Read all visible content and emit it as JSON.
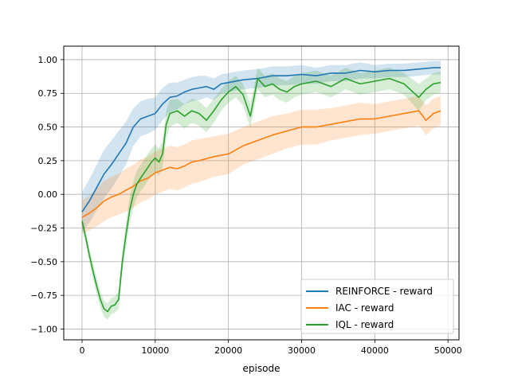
{
  "chart_data": {
    "type": "line",
    "title": "",
    "xlabel": "episode",
    "ylabel": "",
    "xlim": [
      -2500,
      51500
    ],
    "ylim": [
      -1.08,
      1.1
    ],
    "x_ticks": [
      0,
      10000,
      20000,
      30000,
      40000,
      50000
    ],
    "y_ticks": [
      -1.0,
      -0.75,
      -0.5,
      -0.25,
      0.0,
      0.25,
      0.5,
      0.75,
      1.0
    ],
    "x_tick_labels": [
      "0",
      "10000",
      "20000",
      "30000",
      "40000",
      "50000"
    ],
    "y_tick_labels": [
      "−1.00",
      "−0.75",
      "−0.50",
      "−0.25",
      "0.00",
      "0.25",
      "0.50",
      "0.75",
      "1.00"
    ],
    "grid": true,
    "legend_position": "lower-right",
    "series": [
      {
        "name": "REINFORCE - reward",
        "color": "#1f77b4",
        "x": [
          0,
          1000,
          2000,
          3000,
          4000,
          5000,
          6000,
          7000,
          8000,
          9000,
          10000,
          11000,
          12000,
          13000,
          14000,
          15000,
          16000,
          17000,
          18000,
          19000,
          20000,
          22000,
          24000,
          26000,
          28000,
          30000,
          32000,
          34000,
          36000,
          38000,
          40000,
          42000,
          44000,
          46000,
          48000,
          49000
        ],
        "values": [
          -0.13,
          -0.05,
          0.05,
          0.15,
          0.22,
          0.3,
          0.38,
          0.5,
          0.56,
          0.58,
          0.6,
          0.67,
          0.72,
          0.73,
          0.76,
          0.78,
          0.79,
          0.8,
          0.78,
          0.82,
          0.83,
          0.85,
          0.86,
          0.88,
          0.88,
          0.89,
          0.88,
          0.9,
          0.9,
          0.92,
          0.91,
          0.92,
          0.92,
          0.93,
          0.94,
          0.94
        ],
        "band": [
          0.15,
          0.16,
          0.17,
          0.18,
          0.18,
          0.17,
          0.16,
          0.14,
          0.13,
          0.13,
          0.12,
          0.12,
          0.11,
          0.1,
          0.09,
          0.09,
          0.09,
          0.08,
          0.08,
          0.07,
          0.07,
          0.07,
          0.07,
          0.07,
          0.07,
          0.07,
          0.06,
          0.06,
          0.06,
          0.06,
          0.05,
          0.05,
          0.05,
          0.05,
          0.05,
          0.05
        ]
      },
      {
        "name": "IAC - reward",
        "color": "#ff7f0e",
        "x": [
          0,
          1000,
          2000,
          3000,
          4000,
          5000,
          6000,
          7000,
          8000,
          9000,
          10000,
          11000,
          12000,
          13000,
          14000,
          15000,
          16000,
          18000,
          20000,
          22000,
          24000,
          26000,
          28000,
          30000,
          32000,
          34000,
          36000,
          38000,
          40000,
          42000,
          44000,
          46000,
          47000,
          48000,
          49000
        ],
        "values": [
          -0.17,
          -0.14,
          -0.1,
          -0.05,
          -0.02,
          0.0,
          0.03,
          0.06,
          0.1,
          0.12,
          0.16,
          0.18,
          0.2,
          0.19,
          0.21,
          0.24,
          0.25,
          0.28,
          0.3,
          0.36,
          0.4,
          0.44,
          0.47,
          0.5,
          0.5,
          0.52,
          0.54,
          0.56,
          0.56,
          0.58,
          0.6,
          0.62,
          0.55,
          0.6,
          0.62
        ],
        "band": [
          0.12,
          0.13,
          0.14,
          0.15,
          0.15,
          0.15,
          0.16,
          0.16,
          0.16,
          0.16,
          0.16,
          0.16,
          0.16,
          0.16,
          0.16,
          0.16,
          0.16,
          0.15,
          0.15,
          0.14,
          0.14,
          0.14,
          0.13,
          0.13,
          0.13,
          0.12,
          0.12,
          0.12,
          0.11,
          0.11,
          0.11,
          0.11,
          0.11,
          0.11,
          0.11
        ]
      },
      {
        "name": "IQL - reward",
        "color": "#2ca02c",
        "x": [
          0,
          500,
          1000,
          1500,
          2000,
          2500,
          3000,
          3500,
          4000,
          4500,
          5000,
          5500,
          6000,
          6500,
          7000,
          7500,
          8000,
          8500,
          9000,
          9500,
          10000,
          10500,
          11000,
          11500,
          12000,
          13000,
          14000,
          15000,
          16000,
          17000,
          18000,
          19000,
          20000,
          21000,
          22000,
          23000,
          24000,
          25000,
          26000,
          27000,
          28000,
          29000,
          30000,
          32000,
          34000,
          36000,
          38000,
          40000,
          42000,
          44000,
          46000,
          47000,
          48000,
          49000
        ],
        "values": [
          -0.2,
          -0.32,
          -0.45,
          -0.57,
          -0.68,
          -0.78,
          -0.85,
          -0.87,
          -0.83,
          -0.82,
          -0.78,
          -0.5,
          -0.3,
          -0.12,
          0.0,
          0.08,
          0.12,
          0.16,
          0.2,
          0.24,
          0.27,
          0.24,
          0.3,
          0.52,
          0.6,
          0.62,
          0.58,
          0.62,
          0.6,
          0.55,
          0.62,
          0.7,
          0.76,
          0.8,
          0.74,
          0.58,
          0.86,
          0.8,
          0.82,
          0.78,
          0.76,
          0.8,
          0.82,
          0.84,
          0.8,
          0.86,
          0.82,
          0.84,
          0.86,
          0.82,
          0.72,
          0.78,
          0.82,
          0.83
        ],
        "band": [
          0.04,
          0.05,
          0.05,
          0.06,
          0.06,
          0.06,
          0.06,
          0.06,
          0.06,
          0.06,
          0.07,
          0.08,
          0.09,
          0.1,
          0.1,
          0.1,
          0.1,
          0.1,
          0.1,
          0.1,
          0.1,
          0.1,
          0.1,
          0.1,
          0.1,
          0.09,
          0.09,
          0.09,
          0.09,
          0.09,
          0.09,
          0.08,
          0.08,
          0.08,
          0.08,
          0.09,
          0.08,
          0.08,
          0.08,
          0.08,
          0.08,
          0.08,
          0.08,
          0.08,
          0.08,
          0.08,
          0.08,
          0.08,
          0.08,
          0.08,
          0.1,
          0.08,
          0.08,
          0.08
        ]
      }
    ]
  }
}
